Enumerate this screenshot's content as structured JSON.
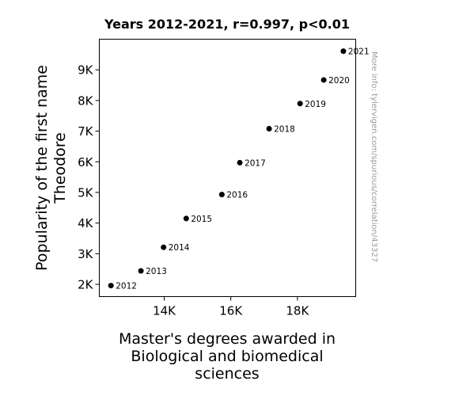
{
  "chart_data": {
    "type": "scatter",
    "title": "Years 2012-2021, r=0.997, p<0.01",
    "xlabel_lines": [
      "Master's degrees awarded in",
      "Biological and biomedical",
      "sciences"
    ],
    "ylabel_lines": [
      "Popularity of the first name",
      "Theodore"
    ],
    "watermark": "More info: tylervigen.com/spurious/correlation/43327",
    "xlim": [
      12050,
      19750
    ],
    "ylim": [
      1600,
      10000
    ],
    "x_ticks": [
      {
        "value": 14000,
        "label": "14K"
      },
      {
        "value": 16000,
        "label": "16K"
      },
      {
        "value": 18000,
        "label": "18K"
      }
    ],
    "y_ticks": [
      {
        "value": 2000,
        "label": "2K"
      },
      {
        "value": 3000,
        "label": "3K"
      },
      {
        "value": 4000,
        "label": "4K"
      },
      {
        "value": 5000,
        "label": "5K"
      },
      {
        "value": 6000,
        "label": "6K"
      },
      {
        "value": 7000,
        "label": "7K"
      },
      {
        "value": 8000,
        "label": "8K"
      },
      {
        "value": 9000,
        "label": "9K"
      }
    ],
    "points": [
      {
        "label": "2012",
        "x": 12400,
        "y": 1960
      },
      {
        "label": "2013",
        "x": 13300,
        "y": 2440
      },
      {
        "label": "2014",
        "x": 13980,
        "y": 3210
      },
      {
        "label": "2015",
        "x": 14660,
        "y": 4150
      },
      {
        "label": "2016",
        "x": 15730,
        "y": 4930
      },
      {
        "label": "2017",
        "x": 16270,
        "y": 5970
      },
      {
        "label": "2018",
        "x": 17150,
        "y": 7080
      },
      {
        "label": "2019",
        "x": 18080,
        "y": 7900
      },
      {
        "label": "2020",
        "x": 18790,
        "y": 8670
      },
      {
        "label": "2021",
        "x": 19380,
        "y": 9610
      }
    ],
    "marker_color": "#000000",
    "grid": false
  }
}
